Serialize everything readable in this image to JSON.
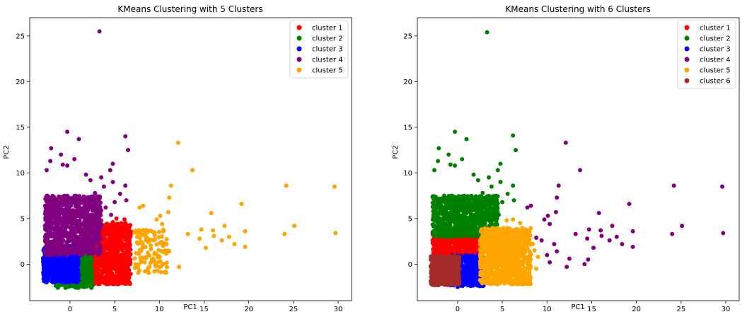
{
  "chart_data": [
    {
      "type": "scatter",
      "title": "KMeans Clustering with 5 Clusters",
      "xlabel": "PC1",
      "ylabel": "PC2",
      "xlim": [
        -4.5,
        31.5
      ],
      "ylim": [
        -4.0,
        27.0
      ],
      "xticks": [
        0,
        5,
        10,
        15,
        20,
        25,
        30
      ],
      "yticks": [
        0,
        5,
        10,
        15,
        20,
        25
      ],
      "grid": false,
      "legend_position": "top-right",
      "series": [
        {
          "name": "cluster 1",
          "color": "#ff0000",
          "regions": [
            {
              "x": [
                1.5,
                6.8
              ],
              "y": [
                -2.2,
                4.5
              ],
              "count": 900
            }
          ],
          "points": [
            [
              3.5,
              4.8
            ],
            [
              4.8,
              4.6
            ],
            [
              5.2,
              5.0
            ],
            [
              6.1,
              4.9
            ],
            [
              6.5,
              4.2
            ],
            [
              7.0,
              3.5
            ],
            [
              5.0,
              3.2
            ]
          ]
        },
        {
          "name": "cluster 2",
          "color": "#008000",
          "regions": [
            {
              "x": [
                -1.6,
                2.5
              ],
              "y": [
                -2.6,
                1.2
              ],
              "count": 500
            }
          ],
          "points": [
            [
              -0.5,
              -2.6
            ],
            [
              0.2,
              -2.4
            ],
            [
              1.8,
              -2.3
            ]
          ]
        },
        {
          "name": "cluster 3",
          "color": "#0000ff",
          "regions": [
            {
              "x": [
                -3.0,
                1.0
              ],
              "y": [
                -2.0,
                2.0
              ],
              "count": 700
            }
          ],
          "points": [
            [
              -2.8,
              1.8
            ],
            [
              -3.0,
              0.3
            ],
            [
              -2.9,
              -0.8
            ]
          ]
        },
        {
          "name": "cluster 4",
          "color": "#800080",
          "regions": [
            {
              "x": [
                -2.8,
                3.5
              ],
              "y": [
                1.0,
                7.5
              ],
              "count": 900
            }
          ],
          "points": [
            [
              3.3,
              25.5
            ],
            [
              -0.3,
              14.5
            ],
            [
              6.2,
              14.0
            ],
            [
              1.0,
              13.7
            ],
            [
              -2.1,
              12.7
            ],
            [
              6.5,
              12.5
            ],
            [
              -1.0,
              12.0
            ],
            [
              0.5,
              11.5
            ],
            [
              -2.2,
              11.3
            ],
            [
              -0.8,
              10.9
            ],
            [
              -0.3,
              10.8
            ],
            [
              4.8,
              11.0
            ],
            [
              -2.6,
              10.3
            ],
            [
              4.5,
              10.3
            ],
            [
              1.8,
              9.8
            ],
            [
              3.5,
              9.5
            ],
            [
              2.3,
              9.2
            ],
            [
              4.8,
              9.0
            ],
            [
              6.2,
              8.6
            ],
            [
              3.8,
              8.5
            ],
            [
              2.8,
              7.8
            ],
            [
              5.6,
              7.7
            ],
            [
              3.2,
              7.2
            ],
            [
              6.3,
              7.0
            ],
            [
              5.0,
              6.8
            ],
            [
              2.2,
              6.6
            ],
            [
              4.0,
              6.2
            ],
            [
              3.5,
              5.9
            ],
            [
              4.6,
              5.4
            ]
          ]
        },
        {
          "name": "cluster 5",
          "color": "#ffa500",
          "regions": [
            {
              "x": [
                7.2,
                11.0
              ],
              "y": [
                -1.0,
                3.8
              ],
              "count": 120
            }
          ],
          "points": [
            [
              12.1,
              13.3
            ],
            [
              13.7,
              10.3
            ],
            [
              11.3,
              8.6
            ],
            [
              11.1,
              7.3
            ],
            [
              24.2,
              8.6
            ],
            [
              29.6,
              8.5
            ],
            [
              7.8,
              6.2
            ],
            [
              8.2,
              6.4
            ],
            [
              19.2,
              6.6
            ],
            [
              11.0,
              5.7
            ],
            [
              15.8,
              5.6
            ],
            [
              10.1,
              5.3
            ],
            [
              9.7,
              4.9
            ],
            [
              10.3,
              4.4
            ],
            [
              25.1,
              4.2
            ],
            [
              17.3,
              4.2
            ],
            [
              14.7,
              3.8
            ],
            [
              16.0,
              3.7
            ],
            [
              19.6,
              3.6
            ],
            [
              29.7,
              3.4
            ],
            [
              13.2,
              3.3
            ],
            [
              24.0,
              3.3
            ],
            [
              16.1,
              3.1
            ],
            [
              14.5,
              2.8
            ],
            [
              17.8,
              3.0
            ],
            [
              18.4,
              2.2
            ],
            [
              17.0,
              2.6
            ],
            [
              19.6,
              1.9
            ],
            [
              15.2,
              1.8
            ],
            [
              12.2,
              -0.3
            ],
            [
              11.1,
              1.4
            ],
            [
              10.8,
              2.2
            ],
            [
              9.4,
              2.6
            ],
            [
              8.4,
              3.3
            ]
          ]
        }
      ]
    },
    {
      "type": "scatter",
      "title": "KMeans Clustering with 6 Clusters",
      "xlabel": "PC1",
      "ylabel": "PC2",
      "xlim": [
        -4.5,
        31.5
      ],
      "ylim": [
        -4.0,
        27.0
      ],
      "xticks": [
        0,
        5,
        10,
        15,
        20,
        25,
        30
      ],
      "yticks": [
        0,
        5,
        10,
        15,
        20,
        25
      ],
      "grid": false,
      "legend_position": "top-right",
      "series": [
        {
          "name": "cluster 1",
          "color": "#ff0000",
          "regions": [
            {
              "x": [
                -2.8,
                2.6
              ],
              "y": [
                0.8,
                3.8
              ],
              "count": 500
            }
          ],
          "points": [
            [
              -2.5,
              3.5
            ],
            [
              2.0,
              3.6
            ]
          ]
        },
        {
          "name": "cluster 2",
          "color": "#008000",
          "regions": [
            {
              "x": [
                -2.8,
                4.5
              ],
              "y": [
                3.0,
                7.5
              ],
              "count": 800
            }
          ],
          "points": [
            [
              3.3,
              25.4
            ],
            [
              -0.3,
              14.5
            ],
            [
              6.2,
              14.1
            ],
            [
              1.0,
              13.7
            ],
            [
              -2.1,
              12.7
            ],
            [
              6.5,
              12.5
            ],
            [
              -1.0,
              12.0
            ],
            [
              0.5,
              11.5
            ],
            [
              -2.2,
              11.3
            ],
            [
              -0.8,
              10.9
            ],
            [
              -0.3,
              10.8
            ],
            [
              4.8,
              11.0
            ],
            [
              -2.6,
              10.3
            ],
            [
              4.5,
              10.3
            ],
            [
              1.8,
              9.8
            ],
            [
              3.5,
              9.5
            ],
            [
              2.3,
              9.2
            ],
            [
              4.8,
              9.0
            ],
            [
              6.2,
              8.6
            ],
            [
              3.8,
              8.5
            ],
            [
              2.8,
              7.8
            ],
            [
              5.6,
              7.7
            ],
            [
              3.2,
              7.2
            ],
            [
              6.3,
              7.0
            ],
            [
              5.0,
              6.8
            ],
            [
              4.6,
              5.4
            ],
            [
              3.5,
              5.9
            ]
          ]
        },
        {
          "name": "cluster 3",
          "color": "#0000ff",
          "regions": [
            {
              "x": [
                -0.8,
                3.0
              ],
              "y": [
                -2.4,
                1.0
              ],
              "count": 450
            }
          ],
          "points": [
            [
              0.0,
              -2.5
            ],
            [
              2.5,
              -2.4
            ]
          ]
        },
        {
          "name": "cluster 4",
          "color": "#800080",
          "points": [
            [
              12.1,
              13.3
            ],
            [
              13.7,
              10.3
            ],
            [
              11.3,
              8.6
            ],
            [
              11.1,
              7.3
            ],
            [
              24.2,
              8.6
            ],
            [
              29.6,
              8.5
            ],
            [
              7.8,
              6.2
            ],
            [
              8.2,
              6.4
            ],
            [
              19.2,
              6.6
            ],
            [
              11.0,
              5.7
            ],
            [
              15.8,
              5.6
            ],
            [
              10.1,
              5.3
            ],
            [
              9.7,
              4.9
            ],
            [
              10.3,
              4.4
            ],
            [
              25.1,
              4.2
            ],
            [
              17.3,
              4.2
            ],
            [
              14.7,
              3.8
            ],
            [
              16.0,
              3.7
            ],
            [
              19.6,
              3.6
            ],
            [
              29.7,
              3.4
            ],
            [
              13.2,
              3.3
            ],
            [
              24.0,
              3.3
            ],
            [
              16.1,
              3.1
            ],
            [
              14.5,
              2.8
            ],
            [
              17.8,
              3.0
            ],
            [
              18.4,
              2.2
            ],
            [
              17.0,
              2.6
            ],
            [
              19.6,
              1.9
            ],
            [
              15.2,
              1.8
            ],
            [
              12.2,
              -0.3
            ],
            [
              11.1,
              1.4
            ],
            [
              10.8,
              2.2
            ],
            [
              9.4,
              2.6
            ],
            [
              8.8,
              2.9
            ],
            [
              10.0,
              1.0
            ],
            [
              12.5,
              0.6
            ],
            [
              14.2,
              0.0
            ],
            [
              14.6,
              0.5
            ],
            [
              10.3,
              0.2
            ]
          ]
        },
        {
          "name": "cluster 5",
          "color": "#ffa500",
          "regions": [
            {
              "x": [
                2.5,
                8.2
              ],
              "y": [
                -2.2,
                4.0
              ],
              "count": 950
            }
          ],
          "points": [
            [
              5.5,
              4.8
            ],
            [
              6.2,
              4.9
            ],
            [
              7.0,
              4.5
            ],
            [
              7.5,
              3.8
            ],
            [
              7.8,
              3.2
            ],
            [
              8.4,
              2.2
            ],
            [
              8.6,
              1.5
            ],
            [
              9.0,
              0.8
            ],
            [
              8.8,
              -0.5
            ]
          ]
        },
        {
          "name": "cluster 6",
          "color": "#a52a2a",
          "regions": [
            {
              "x": [
                -3.0,
                0.2
              ],
              "y": [
                -2.3,
                0.9
              ],
              "count": 500
            }
          ],
          "points": [
            [
              -3.0,
              0.5
            ],
            [
              -2.8,
              -1.6
            ]
          ]
        }
      ]
    }
  ]
}
